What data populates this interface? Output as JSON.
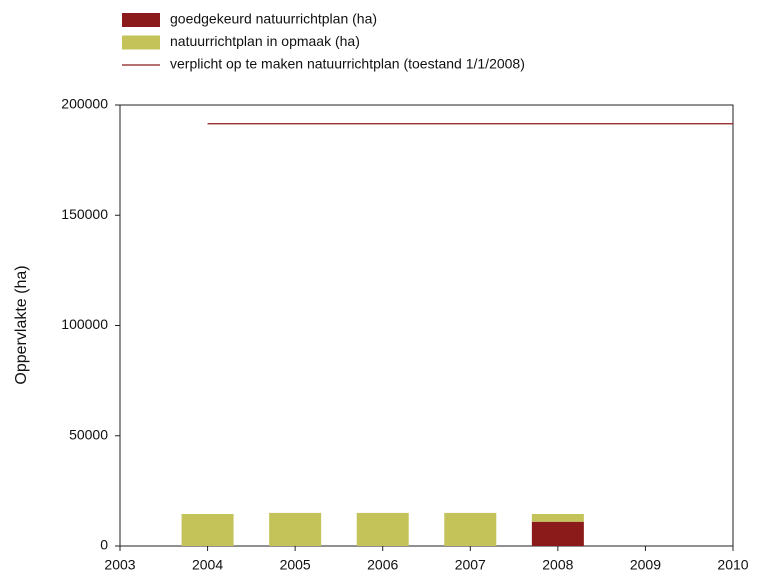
{
  "chart_data": {
    "type": "bar",
    "ylabel": "Oppervlakte (ha)",
    "x": [
      2004,
      2005,
      2006,
      2007,
      2008
    ],
    "series": [
      {
        "name": "goedgekeurd natuurrichtplan (ha)",
        "color": "#8b1a1a",
        "values": [
          null,
          null,
          null,
          null,
          11000
        ]
      },
      {
        "name": "natuurrichtplan in opmaak (ha)",
        "color": "#c3c35a",
        "values": [
          14500,
          15000,
          15000,
          15000,
          3500
        ]
      },
      {
        "name": "verplicht op te maken natuurrichtplan (toestand 1/1/2008)",
        "color": "#8b1a1a",
        "type": "line",
        "x": [
          2004,
          2010
        ],
        "values": [
          191500,
          191500
        ]
      }
    ],
    "xlim": [
      2003,
      2010
    ],
    "xticks": [
      2003,
      2004,
      2005,
      2006,
      2007,
      2008,
      2009,
      2010
    ],
    "ylim": [
      0,
      200000
    ],
    "yticks": [
      0,
      50000,
      100000,
      150000,
      200000
    ]
  }
}
